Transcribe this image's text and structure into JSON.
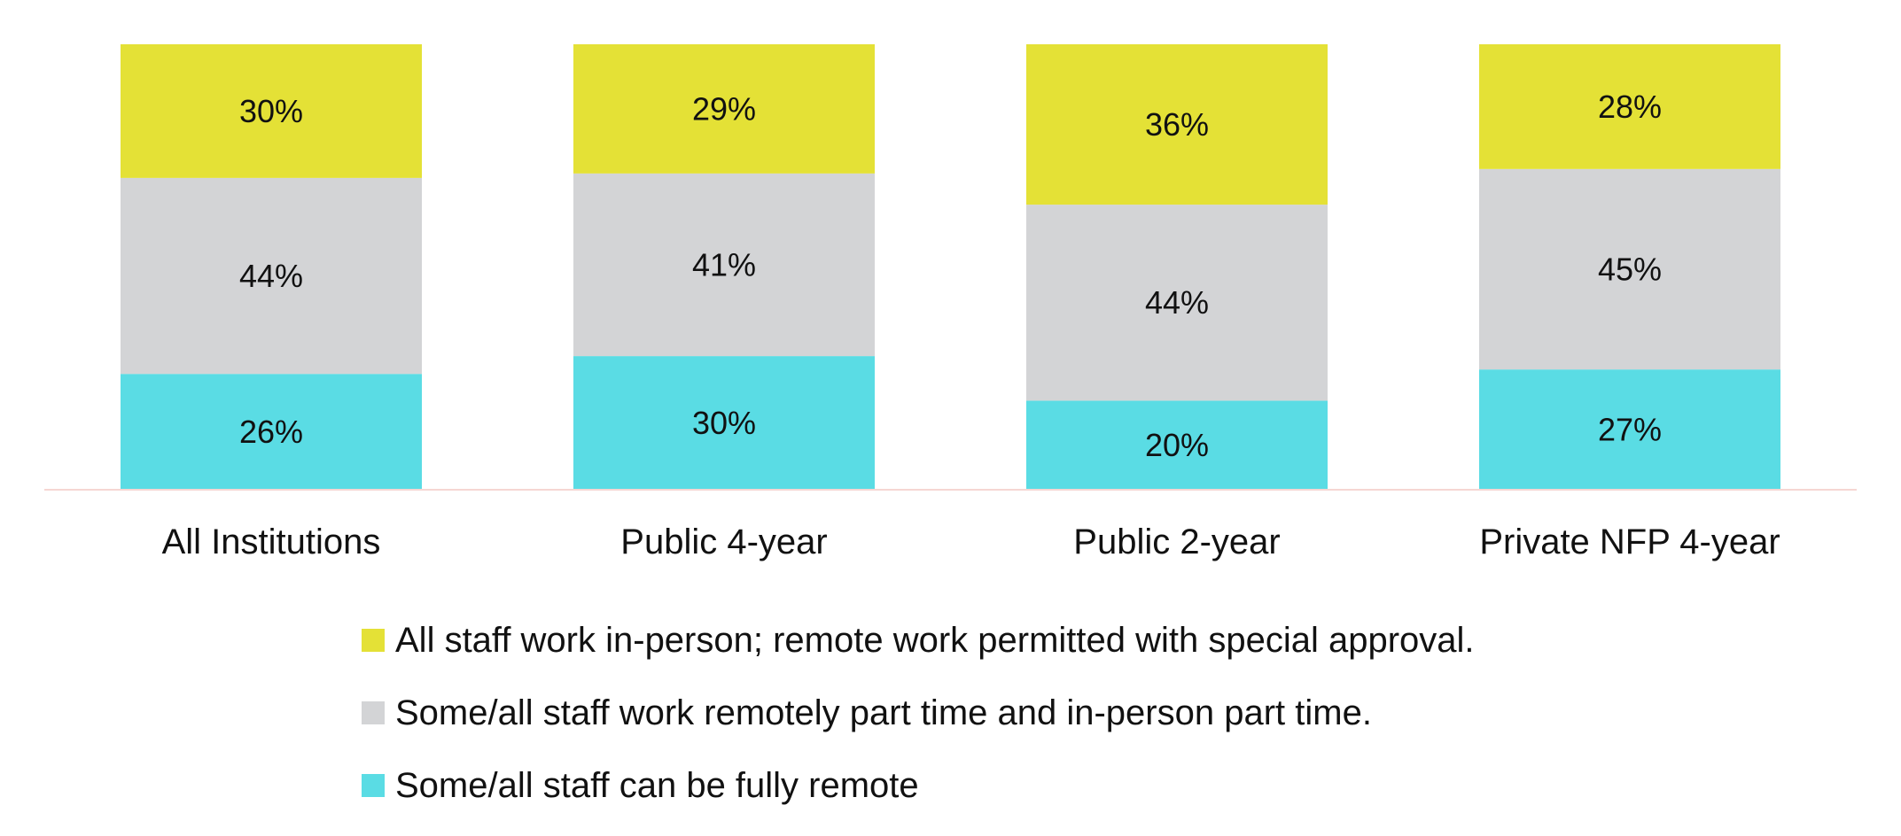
{
  "chart_data": {
    "type": "bar",
    "stacked": true,
    "normalized": true,
    "categories": [
      "All Institutions",
      "Public 4-year",
      "Public 2-year",
      "Private NFP 4-year"
    ],
    "series": [
      {
        "name": "Some/all staff can be fully remote",
        "color": "#5adce4",
        "values": [
          26,
          30,
          20,
          27
        ],
        "labels": [
          "26%",
          "30%",
          "20%",
          "27%"
        ]
      },
      {
        "name": "Some/all staff work remotely part time and in-person part time.",
        "color": "#d3d4d6",
        "values": [
          44,
          41,
          44,
          45
        ],
        "labels": [
          "44%",
          "41%",
          "44%",
          "45%"
        ]
      },
      {
        "name": "All staff work in-person; remote work permitted with special approval.",
        "color": "#e4e136",
        "values": [
          30,
          29,
          36,
          28
        ],
        "labels": [
          "30%",
          "29%",
          "36%",
          "28%"
        ]
      }
    ],
    "legend_order": [
      2,
      1,
      0
    ],
    "legend_position": "bottom",
    "grid": false,
    "axis_line_color": "#f6d6d3"
  }
}
